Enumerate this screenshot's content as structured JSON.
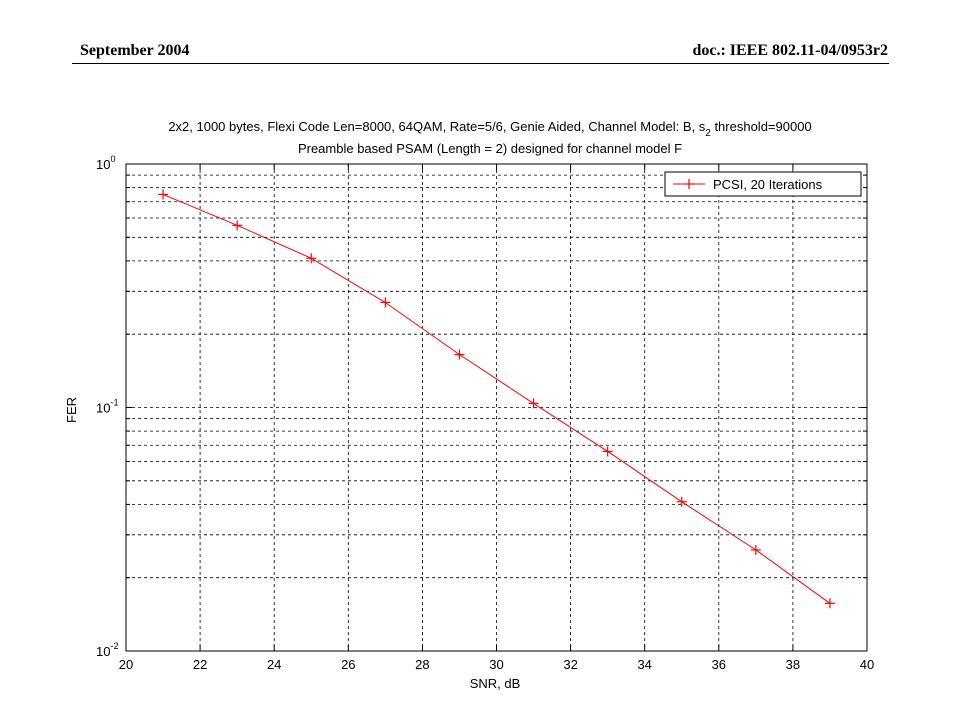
{
  "header": {
    "left": "September 2004",
    "right": "doc.: IEEE 802.11-04/0953r2"
  },
  "chart_data": {
    "type": "line",
    "title_line1_a": "2x2, 1000 bytes, Flexi Code Len=8000, 64QAM, Rate=5/6, Genie Aided, Channel Model: B, s",
    "title_line1_sub": "2",
    "title_line1_b": " threshold=90000",
    "title_line2": "Preamble based PSAM (Length = 2) designed for channel model F",
    "xlabel": "SNR, dB",
    "ylabel": "FER",
    "x_scale": "linear",
    "y_scale": "log",
    "xlim": [
      20,
      40
    ],
    "ylim": [
      0.01,
      1
    ],
    "x_ticks": [
      "20",
      "22",
      "24",
      "26",
      "28",
      "30",
      "32",
      "34",
      "36",
      "38",
      "40"
    ],
    "y_ticks": [
      {
        "base": "10",
        "exp": "0"
      },
      {
        "base": "10",
        "exp": "-1"
      },
      {
        "base": "10",
        "exp": "-2"
      }
    ],
    "grid": true,
    "legend_position": "top-right",
    "series": [
      {
        "name": "PCSI, 20 Iterations",
        "color": "#ff0000",
        "marker": "plus",
        "x": [
          21,
          23,
          25,
          27,
          29,
          31,
          33,
          35,
          37,
          39
        ],
        "y": [
          0.75,
          0.56,
          0.41,
          0.27,
          0.165,
          0.104,
          0.066,
          0.041,
          0.026,
          0.0157
        ]
      }
    ]
  }
}
